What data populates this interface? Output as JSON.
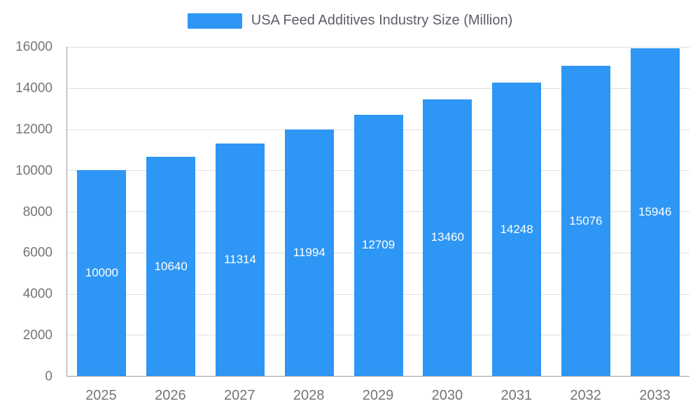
{
  "chart_data": {
    "type": "bar",
    "title": "USA Feed Additives Industry Size (Million)",
    "legend_position": "top",
    "categories": [
      "2025",
      "2026",
      "2027",
      "2028",
      "2029",
      "2030",
      "2031",
      "2032",
      "2033"
    ],
    "values": [
      10000,
      10640,
      11314,
      11994,
      12709,
      13460,
      14248,
      15076,
      15946
    ],
    "xlabel": "",
    "ylabel": "",
    "ylim": [
      0,
      16000
    ],
    "yticks": [
      0,
      2000,
      4000,
      6000,
      8000,
      10000,
      12000,
      14000,
      16000
    ],
    "grid": true,
    "bar_color": "#2E96F5",
    "bar_label_color": "#ffffff",
    "axis_text_color": "#757575",
    "legend_text_color": "#5b5f66"
  }
}
